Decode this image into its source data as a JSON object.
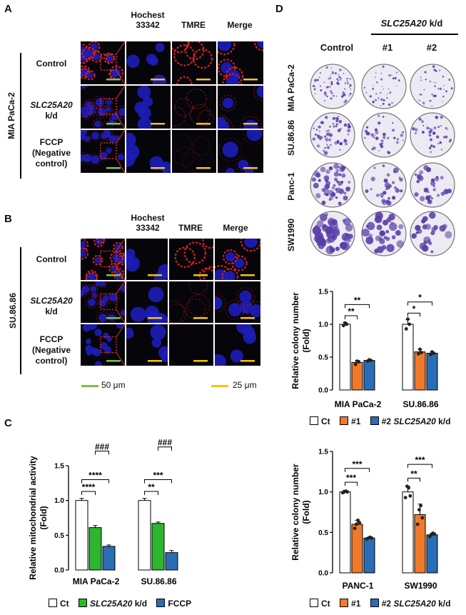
{
  "panel_a": {
    "letter": "A",
    "col_headers": [
      "Hochest\n33342",
      "TMRE",
      "Merge"
    ],
    "cell_line": "MIA PaCa-2",
    "rows": [
      {
        "label_italic": "",
        "label": "Control"
      },
      {
        "label_italic": "SLC25A20",
        "label": "k/d"
      },
      {
        "label_italic": "",
        "label": "FCCP\n(Negative\ncontrol)"
      }
    ]
  },
  "panel_b": {
    "letter": "B",
    "col_headers": [
      "Hochest\n33342",
      "TMRE",
      "Merge"
    ],
    "cell_line": "SU.86.86",
    "rows": [
      {
        "label_italic": "",
        "label": "Control"
      },
      {
        "label_italic": "SLC25A20",
        "label": "k/d"
      },
      {
        "label_italic": "",
        "label": "FCCP\n(Negative\ncontrol)"
      }
    ],
    "scale_green": "50 μm",
    "scale_yellow": "25 μm"
  },
  "panel_c": {
    "letter": "C",
    "legend": [
      {
        "label": "Ct",
        "italic": "",
        "suffix": "",
        "color": "#ffffff"
      },
      {
        "label": "",
        "italic": "SLC25A20",
        "suffix": " k/d",
        "color": "#2db52d"
      },
      {
        "label": "FCCP",
        "italic": "",
        "suffix": "",
        "color": "#2a6db5"
      }
    ]
  },
  "panel_d": {
    "letter": "D",
    "kd_header_italic": "SLC25A20",
    "kd_header_suffix": " k/d",
    "col_headers": [
      "Control",
      "#1",
      "#2"
    ],
    "row_labels": [
      "MIA PaCa-2",
      "SU.86.86",
      "Panc-1",
      "SW1990"
    ],
    "legend": [
      {
        "label": "Ct",
        "italic": "",
        "color": "#ffffff"
      },
      {
        "label": "#1",
        "italic": "",
        "color": "#f07a2a"
      },
      {
        "label": "#2",
        "italic": "SLC25A20",
        "suffix": " k/d",
        "color": "#2a6db5"
      }
    ]
  },
  "chart_data": [
    {
      "type": "bar",
      "panel": "C",
      "ylabel": "Relative mitochondrial activity\n(Fold)",
      "categories": [
        "MIA PaCa-2",
        "SU.86.86"
      ],
      "series": [
        {
          "name": "Ct",
          "values": [
            1.0,
            1.0
          ],
          "errors": [
            0.03,
            0.03
          ],
          "color": "#ffffff"
        },
        {
          "name": "SLC25A20 k/d",
          "values": [
            0.61,
            0.67
          ],
          "errors": [
            0.03,
            0.02
          ],
          "color": "#2db52d"
        },
        {
          "name": "FCCP",
          "values": [
            0.34,
            0.25
          ],
          "errors": [
            0.02,
            0.03
          ],
          "color": "#2a6db5"
        }
      ],
      "ylim": [
        0,
        1.5
      ],
      "yticks": [
        0.0,
        0.5,
        1.0,
        1.5
      ],
      "annotations": [
        {
          "group": 0,
          "from": 0,
          "to": 1,
          "text": "****"
        },
        {
          "group": 0,
          "from": 0,
          "to": 2,
          "text": "****"
        },
        {
          "group": 0,
          "from": 1,
          "to": 2,
          "text": "###"
        },
        {
          "group": 1,
          "from": 0,
          "to": 1,
          "text": "**"
        },
        {
          "group": 1,
          "from": 0,
          "to": 2,
          "text": "***"
        },
        {
          "group": 1,
          "from": 1,
          "to": 2,
          "text": "###"
        }
      ]
    },
    {
      "type": "bar",
      "panel": "D-top",
      "ylabel": "Relative colony number\n(Fold)",
      "categories": [
        "MIA PaCa-2",
        "SU.86.86"
      ],
      "series": [
        {
          "name": "Ct",
          "values": [
            1.0,
            1.0
          ],
          "errors": [
            0.03,
            0.07
          ],
          "color": "#ffffff",
          "points": [
            [
              0.98,
              1.02,
              1.0
            ],
            [
              0.93,
              1.08,
              1.0
            ]
          ]
        },
        {
          "name": "#1",
          "values": [
            0.42,
            0.58
          ],
          "errors": [
            0.03,
            0.04
          ],
          "color": "#f07a2a",
          "points": [
            [
              0.39,
              0.44,
              0.43
            ],
            [
              0.55,
              0.62,
              0.57
            ]
          ]
        },
        {
          "name": "#2",
          "values": [
            0.45,
            0.56
          ],
          "errors": [
            0.01,
            0.02
          ],
          "color": "#2a6db5",
          "points": [
            [
              0.44,
              0.46,
              0.45
            ],
            [
              0.54,
              0.58,
              0.56
            ]
          ]
        }
      ],
      "ylim": [
        0,
        1.5
      ],
      "yticks": [
        0.0,
        0.5,
        1.0,
        1.5
      ],
      "annotations": [
        {
          "group": 0,
          "from": 0,
          "to": 1,
          "text": "**"
        },
        {
          "group": 0,
          "from": 0,
          "to": 2,
          "text": "**"
        },
        {
          "group": 1,
          "from": 0,
          "to": 1,
          "text": "*"
        },
        {
          "group": 1,
          "from": 0,
          "to": 2,
          "text": "*"
        }
      ]
    },
    {
      "type": "bar",
      "panel": "D-bottom",
      "ylabel": "Relative colony number\n(Fold)",
      "categories": [
        "PANC-1",
        "SW1990"
      ],
      "series": [
        {
          "name": "Ct",
          "values": [
            1.0,
            1.0
          ],
          "errors": [
            0.02,
            0.07
          ],
          "color": "#ffffff",
          "points": [
            [
              0.99,
              1.0,
              1.01,
              1.0
            ],
            [
              0.93,
              1.07,
              1.05,
              0.95
            ]
          ]
        },
        {
          "name": "#1",
          "values": [
            0.6,
            0.72
          ],
          "errors": [
            0.05,
            0.13
          ],
          "color": "#f07a2a",
          "points": [
            [
              0.55,
              0.6,
              0.65,
              0.62
            ],
            [
              0.6,
              0.78,
              0.83,
              0.68
            ]
          ]
        },
        {
          "name": "#2",
          "values": [
            0.43,
            0.47
          ],
          "errors": [
            0.01,
            0.02
          ],
          "color": "#2a6db5",
          "points": [
            [
              0.42,
              0.43,
              0.44,
              0.43
            ],
            [
              0.45,
              0.47,
              0.49,
              0.48
            ]
          ]
        }
      ],
      "ylim": [
        0,
        1.5
      ],
      "yticks": [
        0.0,
        0.5,
        1.0,
        1.5
      ],
      "annotations": [
        {
          "group": 0,
          "from": 0,
          "to": 1,
          "text": "***"
        },
        {
          "group": 0,
          "from": 0,
          "to": 2,
          "text": "***"
        },
        {
          "group": 1,
          "from": 0,
          "to": 1,
          "text": "**"
        },
        {
          "group": 1,
          "from": 0,
          "to": 2,
          "text": "***"
        }
      ]
    }
  ]
}
